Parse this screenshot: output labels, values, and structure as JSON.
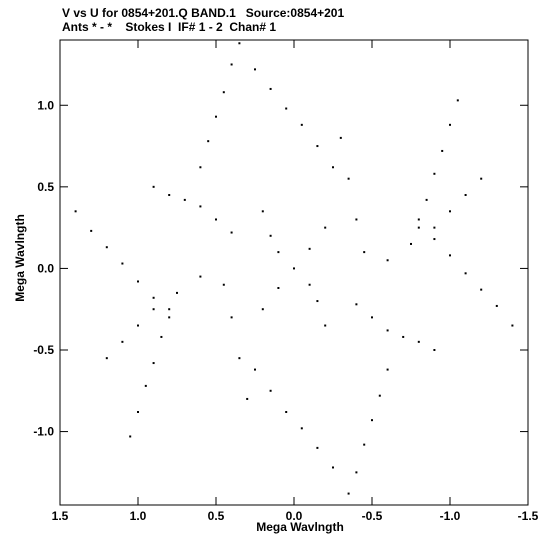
{
  "chart_data": {
    "type": "scatter",
    "title": "V vs U for 0854+201.Q BAND.1   Source:0854+201",
    "subtitle": "Ants * - *    Stokes I  IF# 1 - 2  Chan# 1",
    "xlabel": "Mega Wavlngth",
    "ylabel": "Mega Wavlngth",
    "xlim": [
      1.5,
      -1.5
    ],
    "ylim": [
      -1.45,
      1.4
    ],
    "x_ticks": [
      1.5,
      1.0,
      0.5,
      0.0,
      -0.5,
      -1.0,
      -1.5
    ],
    "x_tick_labels": [
      "1.5",
      "1.0",
      "0.5",
      "0.0",
      "-0.5",
      "-1.0",
      "-1.5"
    ],
    "y_ticks": [
      1.0,
      0.5,
      0.0,
      -0.5,
      -1.0
    ],
    "y_tick_labels": [
      "1.0",
      "0.5",
      "0.0",
      "-0.5",
      "-1.0"
    ],
    "grid": false,
    "marker_color": "#000000",
    "series": [
      {
        "points": [
          [
            0.0,
            0.0
          ],
          [
            0.35,
            1.38
          ],
          [
            0.4,
            1.25
          ],
          [
            0.45,
            1.08
          ],
          [
            0.5,
            0.93
          ],
          [
            0.55,
            0.78
          ],
          [
            0.6,
            0.62
          ],
          [
            -0.35,
            -1.38
          ],
          [
            -0.4,
            -1.25
          ],
          [
            -0.45,
            -1.08
          ],
          [
            -0.5,
            -0.93
          ],
          [
            -0.55,
            -0.78
          ],
          [
            -0.6,
            -0.62
          ],
          [
            1.4,
            0.35
          ],
          [
            1.3,
            0.23
          ],
          [
            1.2,
            0.13
          ],
          [
            1.1,
            0.03
          ],
          [
            1.0,
            -0.08
          ],
          [
            0.9,
            -0.18
          ],
          [
            0.8,
            -0.25
          ],
          [
            -1.4,
            -0.35
          ],
          [
            -1.3,
            -0.23
          ],
          [
            -1.2,
            -0.13
          ],
          [
            -1.1,
            -0.03
          ],
          [
            -1.0,
            0.08
          ],
          [
            -0.9,
            0.18
          ],
          [
            -0.8,
            0.25
          ],
          [
            -1.05,
            1.03
          ],
          [
            -1.0,
            0.88
          ],
          [
            -0.95,
            0.72
          ],
          [
            -0.9,
            0.58
          ],
          [
            -0.85,
            0.42
          ],
          [
            -0.8,
            0.3
          ],
          [
            1.05,
            -1.03
          ],
          [
            1.0,
            -0.88
          ],
          [
            0.95,
            -0.72
          ],
          [
            0.9,
            -0.58
          ],
          [
            0.85,
            -0.42
          ],
          [
            0.8,
            -0.3
          ],
          [
            0.25,
            1.22
          ],
          [
            0.15,
            1.1
          ],
          [
            0.05,
            0.98
          ],
          [
            -0.05,
            0.88
          ],
          [
            -0.15,
            0.75
          ],
          [
            -0.25,
            0.62
          ],
          [
            -0.25,
            -1.22
          ],
          [
            -0.15,
            -1.1
          ],
          [
            -0.05,
            -0.98
          ],
          [
            0.05,
            -0.88
          ],
          [
            0.15,
            -0.75
          ],
          [
            0.25,
            -0.62
          ],
          [
            -1.2,
            0.55
          ],
          [
            -1.1,
            0.45
          ],
          [
            -1.0,
            0.35
          ],
          [
            -0.9,
            0.25
          ],
          [
            -0.75,
            0.15
          ],
          [
            -0.6,
            0.05
          ],
          [
            1.2,
            -0.55
          ],
          [
            1.1,
            -0.45
          ],
          [
            1.0,
            -0.35
          ],
          [
            0.9,
            -0.25
          ],
          [
            0.75,
            -0.15
          ],
          [
            0.6,
            -0.05
          ],
          [
            0.9,
            0.5
          ],
          [
            0.8,
            0.45
          ],
          [
            0.7,
            0.42
          ],
          [
            0.6,
            0.38
          ],
          [
            0.5,
            0.3
          ],
          [
            0.4,
            0.22
          ],
          [
            -0.9,
            -0.5
          ],
          [
            -0.8,
            -0.45
          ],
          [
            -0.7,
            -0.42
          ],
          [
            -0.6,
            -0.38
          ],
          [
            -0.5,
            -0.3
          ],
          [
            -0.4,
            -0.22
          ],
          [
            -0.3,
            0.8
          ],
          [
            -0.35,
            0.55
          ],
          [
            -0.4,
            0.3
          ],
          [
            -0.45,
            0.1
          ],
          [
            0.3,
            -0.8
          ],
          [
            0.35,
            -0.55
          ],
          [
            0.4,
            -0.3
          ],
          [
            0.45,
            -0.1
          ],
          [
            0.2,
            0.35
          ],
          [
            0.15,
            0.2
          ],
          [
            0.1,
            0.1
          ],
          [
            -0.1,
            -0.1
          ],
          [
            -0.15,
            -0.2
          ],
          [
            -0.2,
            -0.35
          ],
          [
            -0.2,
            0.25
          ],
          [
            -0.1,
            0.12
          ],
          [
            0.1,
            -0.12
          ],
          [
            0.2,
            -0.25
          ]
        ]
      }
    ]
  }
}
